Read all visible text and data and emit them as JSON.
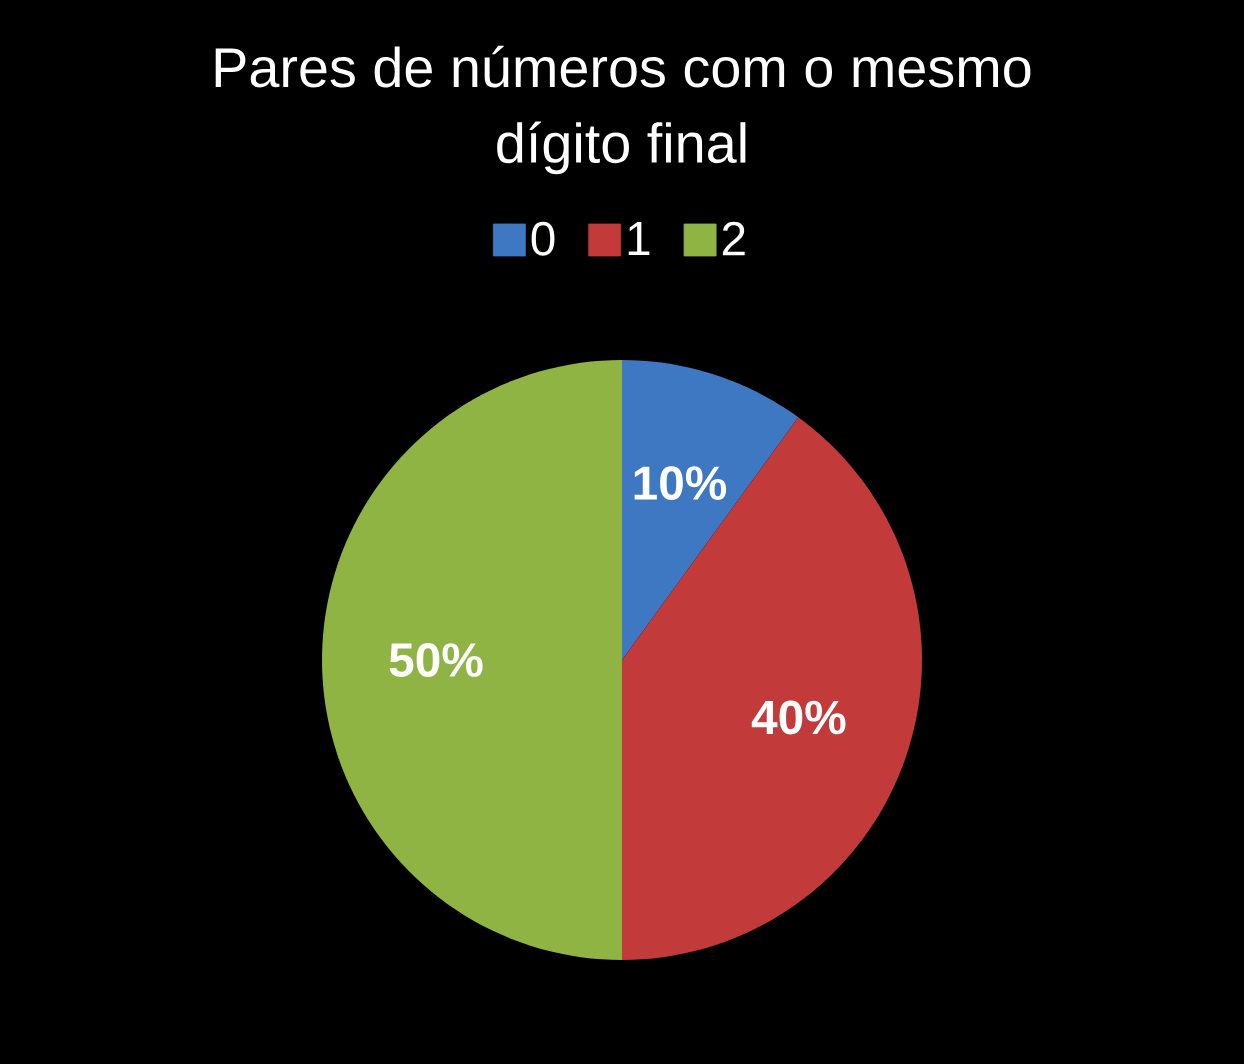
{
  "chart_data": {
    "type": "pie",
    "title": "Pares de números com o mesmo dígito final",
    "categories": [
      "0",
      "1",
      "2"
    ],
    "values": [
      10,
      40,
      50
    ],
    "colors": [
      "#3f78c2",
      "#c23a3a",
      "#8fb443"
    ],
    "value_labels": [
      "10%",
      "40%",
      "50%"
    ],
    "legend": "top"
  }
}
